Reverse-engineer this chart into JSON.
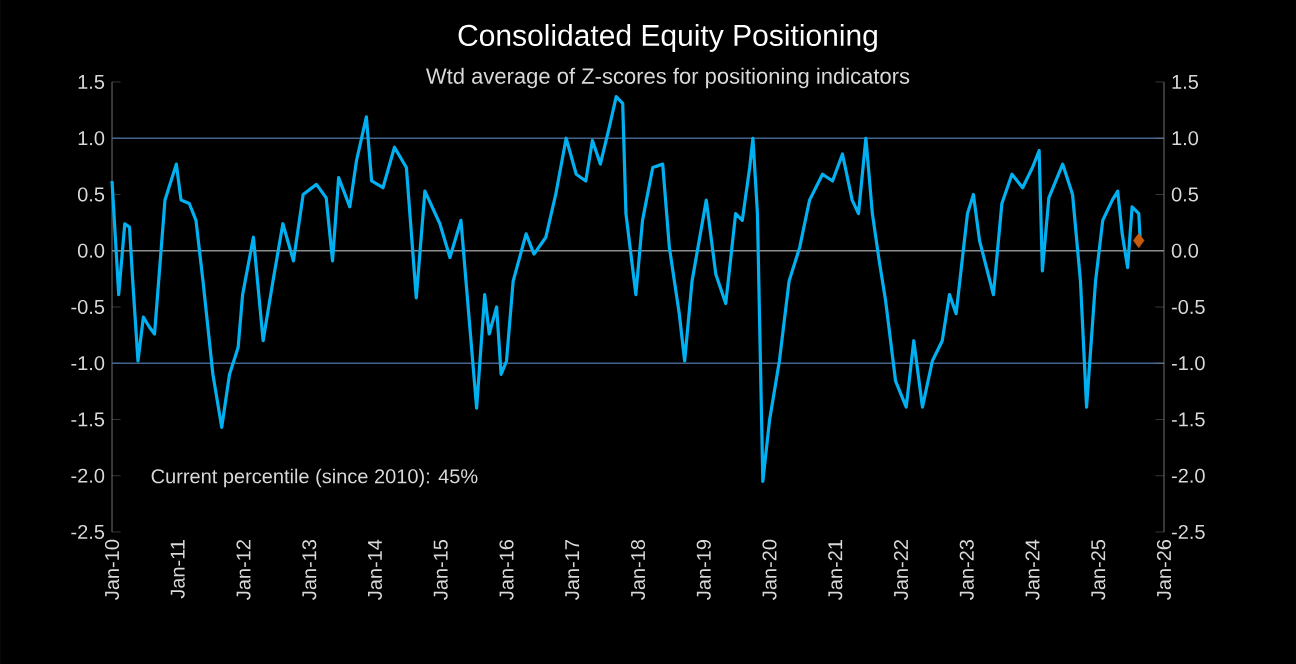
{
  "chart_data": {
    "type": "line",
    "title": "Consolidated Equity Positioning",
    "subtitle": "Wtd average of Z-scores for positioning indicators",
    "annotations": [
      "Current percentile (since 2010): 45%"
    ],
    "series": [
      {
        "color": "#00b0f0",
        "x": [
          "2010-01-01",
          "2010-01-26",
          "2010-02-07",
          "2010-03-13",
          "2010-04-08",
          "2010-04-26",
          "2010-05-25",
          "2010-06-24",
          "2010-07-28",
          "2010-08-25",
          "2010-10-22",
          "2010-12-24",
          "2011-01-19",
          "2011-03-06",
          "2011-04-12",
          "2011-05-21",
          "2011-07-15",
          "2011-09-02",
          "2011-10-15",
          "2011-12-02",
          "2011-12-27",
          "2012-02-25",
          "2012-04-19",
          "2012-06-13",
          "2012-08-07",
          "2012-10-05",
          "2012-11-28",
          "2013-02-10",
          "2013-04-05",
          "2013-05-10",
          "2013-06-13",
          "2013-08-14",
          "2013-09-20",
          "2013-11-14",
          "2013-12-13",
          "2014-02-14",
          "2014-04-19",
          "2014-06-24",
          "2014-08-18",
          "2014-10-05",
          "2014-12-27",
          "2015-02-21",
          "2015-04-23",
          "2015-05-21",
          "2015-07-19",
          "2015-09-02",
          "2015-09-27",
          "2015-11-07",
          "2015-12-02",
          "2016-01-01",
          "2016-02-07",
          "2016-04-19",
          "2016-06-02",
          "2016-08-07",
          "2016-10-01",
          "2016-11-28",
          "2017-01-23",
          "2017-03-17",
          "2017-04-23",
          "2017-06-06",
          "2017-07-26",
          "2017-09-02",
          "2017-10-08",
          "2017-10-26",
          "2017-12-20",
          "2018-01-26",
          "2018-03-24",
          "2018-05-18",
          "2018-06-24",
          "2018-08-18",
          "2018-09-17",
          "2018-10-28",
          "2019-01-15",
          "2019-03-09",
          "2019-05-03",
          "2019-06-27",
          "2019-08-03",
          "2019-09-13",
          "2019-10-01",
          "2019-10-26",
          "2019-11-25",
          "2020-01-01",
          "2020-02-25",
          "2020-04-19",
          "2020-06-17",
          "2020-08-11",
          "2020-10-22",
          "2020-12-17",
          "2021-02-10",
          "2021-04-05",
          "2021-05-10",
          "2021-06-20",
          "2021-07-26",
          "2021-09-02",
          "2021-10-08",
          "2021-12-02",
          "2022-01-30",
          "2022-03-13",
          "2022-04-30",
          "2022-06-24",
          "2022-08-18",
          "2022-09-27",
          "2022-11-03",
          "2023-01-05",
          "2023-02-07",
          "2023-03-13",
          "2023-05-29",
          "2023-07-15",
          "2023-09-09",
          "2023-11-07",
          "2024-01-01",
          "2024-02-07",
          "2024-02-25",
          "2024-04-01",
          "2024-06-17",
          "2024-08-11",
          "2024-09-24",
          "2024-10-28",
          "2024-12-17",
          "2025-01-26",
          "2025-03-20",
          "2025-04-19",
          "2025-05-14",
          "2025-06-13",
          "2025-07-08",
          "2025-08-14",
          "2025-08-21"
        ],
        "values": [
          0.62,
          -0.06,
          -0.39,
          0.24,
          0.21,
          -0.27,
          -0.98,
          -0.59,
          -0.68,
          -0.74,
          0.45,
          0.77,
          0.45,
          0.42,
          0.27,
          -0.27,
          -1.1,
          -1.57,
          -1.1,
          -0.86,
          -0.39,
          0.12,
          -0.8,
          -0.27,
          0.24,
          -0.09,
          0.5,
          0.59,
          0.47,
          -0.09,
          0.65,
          0.39,
          0.8,
          1.19,
          0.62,
          0.56,
          0.92,
          0.74,
          -0.42,
          0.53,
          0.24,
          -0.06,
          0.27,
          -0.27,
          -1.4,
          -0.39,
          -0.74,
          -0.5,
          -1.1,
          -0.98,
          -0.27,
          0.15,
          -0.03,
          0.12,
          0.5,
          1.0,
          0.68,
          0.62,
          0.98,
          0.77,
          1.1,
          1.37,
          1.31,
          0.33,
          -0.39,
          0.27,
          0.74,
          0.77,
          0.03,
          -0.56,
          -0.98,
          -0.27,
          0.45,
          -0.21,
          -0.47,
          0.33,
          0.27,
          0.74,
          1.0,
          0.33,
          -2.05,
          -1.51,
          -0.98,
          -0.27,
          0.03,
          0.45,
          0.68,
          0.62,
          0.86,
          0.45,
          0.33,
          1.0,
          0.33,
          -0.09,
          -0.45,
          -1.16,
          -1.39,
          -0.8,
          -1.39,
          -0.98,
          -0.8,
          -0.39,
          -0.56,
          0.33,
          0.5,
          0.09,
          -0.39,
          0.42,
          0.68,
          0.56,
          0.74,
          0.89,
          -0.18,
          0.47,
          0.77,
          0.5,
          -0.27,
          -1.39,
          -0.27,
          0.27,
          0.45,
          0.53,
          0.15,
          -0.15,
          0.39,
          0.33,
          0.12
        ]
      },
      {
        "type": "scatter",
        "marker": "diamond",
        "color": "#c55a11",
        "x": [
          "2025-08-14"
        ],
        "values": [
          0.09
        ]
      }
    ],
    "xlim": [
      "2010-01",
      "2026-01"
    ],
    "xticks": [
      {
        "value": "2010-01",
        "label": "Jan-10"
      },
      {
        "value": "2011-01",
        "label": "Jan-11"
      },
      {
        "value": "2012-01",
        "label": "Jan-12"
      },
      {
        "value": "2013-01",
        "label": "Jan-13"
      },
      {
        "value": "2014-01",
        "label": "Jan-14"
      },
      {
        "value": "2015-01",
        "label": "Jan-15"
      },
      {
        "value": "2016-01",
        "label": "Jan-16"
      },
      {
        "value": "2017-01",
        "label": "Jan-17"
      },
      {
        "value": "2018-01",
        "label": "Jan-18"
      },
      {
        "value": "2019-01",
        "label": "Jan-19"
      },
      {
        "value": "2020-01",
        "label": "Jan-20"
      },
      {
        "value": "2021-01",
        "label": "Jan-21"
      },
      {
        "value": "2022-01",
        "label": "Jan-22"
      },
      {
        "value": "2023-01",
        "label": "Jan-23"
      },
      {
        "value": "2024-01",
        "label": "Jan-24"
      },
      {
        "value": "2025-01",
        "label": "Jan-25"
      },
      {
        "value": "2026-01",
        "label": "Jan-26"
      }
    ],
    "ylim": [
      -2.5,
      1.5
    ],
    "yticks": [
      -2.5,
      {
        "value": -2,
        "label": "-2.0"
      },
      -1.5,
      {
        "value": -1,
        "label": "-1.0"
      },
      -0.5,
      {
        "value": 0,
        "label": "0.0"
      },
      0.5,
      {
        "value": 1,
        "label": "1.0"
      },
      1.5
    ],
    "y2lim": [
      -2.5,
      1.5
    ],
    "y2ticks": [
      -2.5,
      {
        "value": -2,
        "label": "-2.0"
      },
      -1.5,
      {
        "value": -1,
        "label": "-1.0"
      },
      -0.5,
      {
        "value": 0,
        "label": "0.0"
      },
      0.5,
      {
        "value": 1,
        "label": "1.0"
      },
      1.5
    ],
    "ref_lines": [
      {
        "axis": "y",
        "value": 1,
        "color": "#44648c"
      },
      {
        "axis": "y",
        "value": 0,
        "color": "#8c8c8c"
      },
      {
        "axis": "y",
        "value": -1,
        "color": "#44648c"
      }
    ],
    "line_style": "solid",
    "grid": false
  }
}
